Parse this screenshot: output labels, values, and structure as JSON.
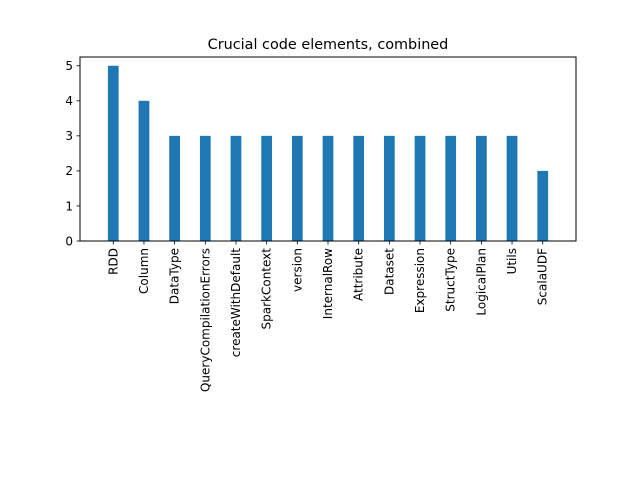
{
  "chart_data": {
    "type": "bar",
    "title": "Crucial code elements, combined",
    "xlabel": "",
    "ylabel": "",
    "categories": [
      "RDD",
      "Column",
      "DataType",
      "QueryCompilationErrors",
      "createWithDefault",
      "SparkContext",
      "version",
      "InternalRow",
      "Attribute",
      "Dataset",
      "Expression",
      "StructType",
      "LogicalPlan",
      "Utils",
      "ScalaUDF"
    ],
    "values": [
      5,
      4,
      3,
      3,
      3,
      3,
      3,
      3,
      3,
      3,
      3,
      3,
      3,
      3,
      2
    ],
    "ylim": [
      0,
      5.25
    ],
    "yticks": [
      0,
      1,
      2,
      3,
      4,
      5
    ],
    "grid": false,
    "bar_color": "#1f77b4"
  }
}
